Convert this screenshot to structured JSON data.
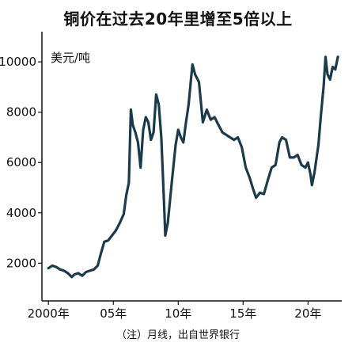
{
  "chart_data": {
    "type": "line",
    "title": "铜价在过去20年里增至5倍以上",
    "ylabel": "美元/吨",
    "note": "（注）月线，出自世界银行",
    "xlim": [
      1999.5,
      2022.6
    ],
    "ylim": [
      500,
      11200
    ],
    "x_ticks": [
      {
        "value": 2000,
        "label": "2000年"
      },
      {
        "value": 2005,
        "label": "05年"
      },
      {
        "value": 2010,
        "label": "10年"
      },
      {
        "value": 2015,
        "label": "15年"
      },
      {
        "value": 2020,
        "label": "20年"
      }
    ],
    "y_ticks": [
      {
        "value": 2000,
        "label": "2000"
      },
      {
        "value": 4000,
        "label": "4000"
      },
      {
        "value": 6000,
        "label": "6000"
      },
      {
        "value": 8000,
        "label": "8000"
      },
      {
        "value": 10000,
        "label": "10000"
      }
    ],
    "line_color": "#1b3a4b",
    "grid": false,
    "series": [
      {
        "x": [
          2000.0,
          2000.3,
          2000.6,
          2000.9,
          2001.2,
          2001.5,
          2001.8,
          2002.0,
          2002.3,
          2002.6,
          2002.9,
          2003.2,
          2003.5,
          2003.8,
          2004.0,
          2004.3,
          2004.6,
          2004.9,
          2005.2,
          2005.5,
          2005.8,
          2006.0,
          2006.2,
          2006.35,
          2006.5,
          2006.7,
          2006.9,
          2007.1,
          2007.3,
          2007.5,
          2007.7,
          2007.9,
          2008.1,
          2008.3,
          2008.5,
          2008.7,
          2008.9,
          2009.0,
          2009.2,
          2009.5,
          2009.8,
          2010.0,
          2010.2,
          2010.4,
          2010.6,
          2010.8,
          2011.0,
          2011.1,
          2011.3,
          2011.6,
          2011.9,
          2012.2,
          2012.5,
          2012.8,
          2013.1,
          2013.4,
          2013.7,
          2014.0,
          2014.3,
          2014.6,
          2014.9,
          2015.2,
          2015.5,
          2015.8,
          2016.0,
          2016.3,
          2016.6,
          2016.9,
          2017.2,
          2017.5,
          2017.8,
          2018.0,
          2018.3,
          2018.6,
          2018.9,
          2019.2,
          2019.5,
          2019.8,
          2020.0,
          2020.2,
          2020.3,
          2020.5,
          2020.8,
          2021.0,
          2021.2,
          2021.35,
          2021.5,
          2021.7,
          2021.9,
          2022.1,
          2022.3
        ],
        "values": [
          1800,
          1900,
          1850,
          1750,
          1700,
          1600,
          1450,
          1550,
          1600,
          1500,
          1650,
          1700,
          1750,
          1900,
          2300,
          2850,
          2900,
          3100,
          3300,
          3600,
          3950,
          4700,
          5200,
          8100,
          7500,
          7200,
          6800,
          5800,
          7300,
          7800,
          7600,
          6900,
          7200,
          8700,
          8300,
          7000,
          4500,
          3100,
          3600,
          5200,
          6700,
          7300,
          7000,
          6800,
          7600,
          8300,
          9400,
          9900,
          9500,
          9200,
          7600,
          8100,
          7700,
          7800,
          7500,
          7200,
          7100,
          7000,
          6900,
          7000,
          6600,
          5800,
          5400,
          4900,
          4600,
          4800,
          4750,
          5300,
          5800,
          5900,
          6800,
          7000,
          6900,
          6200,
          6200,
          6300,
          5900,
          5800,
          6000,
          5500,
          5100,
          5600,
          6700,
          7900,
          9000,
          10200,
          9500,
          9300,
          9800,
          9700,
          10200
        ]
      }
    ]
  }
}
